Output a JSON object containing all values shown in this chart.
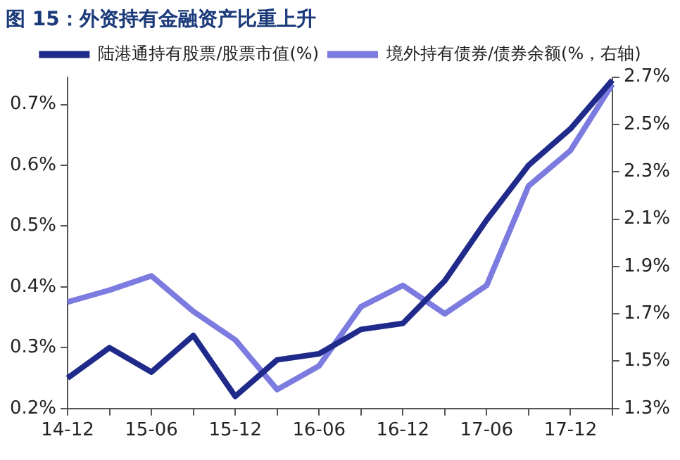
{
  "chart_data": {
    "type": "line",
    "title": "图 15：外资持有金融资产比重上升",
    "categories": [
      "14-12",
      null,
      "15-06",
      null,
      "15-12",
      null,
      "16-06",
      null,
      "16-12",
      null,
      "17-06",
      null,
      "17-12",
      null
    ],
    "series": [
      {
        "name": "陆港通持有股票/股票市值(%)",
        "color": "#1f2a8a",
        "values": [
          0.25,
          0.3,
          0.26,
          0.32,
          0.22,
          0.28,
          0.29,
          0.33,
          0.34,
          0.41,
          0.51,
          0.6,
          0.66,
          0.74
        ]
      },
      {
        "name": "境外持有债券/债券余额(%，右轴)",
        "color": "#7b7be0",
        "axis": "y2",
        "values": [
          1.75,
          1.8,
          1.86,
          1.71,
          1.59,
          1.38,
          1.48,
          1.73,
          1.82,
          1.7,
          1.82,
          2.24,
          2.39,
          2.67
        ]
      }
    ],
    "ylim": [
      0.2,
      0.745
    ],
    "yticks": [
      {
        "value": 0.2,
        "label": "0.2%"
      },
      {
        "value": 0.3,
        "label": "0.3%"
      },
      {
        "value": 0.4,
        "label": "0.4%"
      },
      {
        "value": 0.5,
        "label": "0.5%"
      },
      {
        "value": 0.6,
        "label": "0.6%"
      },
      {
        "value": 0.7,
        "label": "0.7%"
      }
    ],
    "y2lim": [
      1.3,
      2.7
    ],
    "y2ticks": [
      {
        "value": 1.3,
        "label": "1.3%"
      },
      {
        "value": 1.5,
        "label": "1.5%"
      },
      {
        "value": 1.7,
        "label": "1.7%"
      },
      {
        "value": 1.9,
        "label": "1.9%"
      },
      {
        "value": 2.1,
        "label": "2.1%"
      },
      {
        "value": 2.3,
        "label": "2.3%"
      },
      {
        "value": 2.5,
        "label": "2.5%"
      },
      {
        "value": 2.7,
        "label": "2.7%"
      }
    ],
    "grid": false,
    "legend": "top",
    "marker": "none",
    "line_style": "solid"
  }
}
